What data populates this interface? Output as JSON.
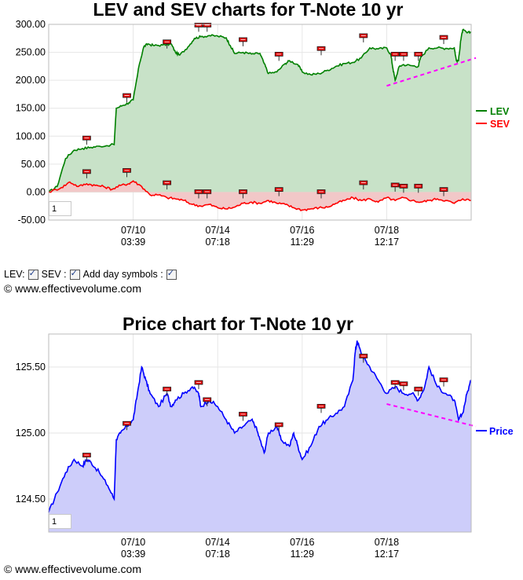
{
  "chart_data": [
    {
      "type": "line",
      "title": "LEV and SEV charts for T-Note 10 yr",
      "x_tick_labels": [
        {
          "date": "07/10",
          "time": "03:39"
        },
        {
          "date": "07/14",
          "time": "07:18"
        },
        {
          "date": "07/16",
          "time": "11:29"
        },
        {
          "date": "07/18",
          "time": "12:17"
        }
      ],
      "y_tick_labels": [
        "300.00",
        "250.00",
        "200.00",
        "150.00",
        "100.00",
        "50.00",
        "0.00",
        "-50.00"
      ],
      "ylim": [
        -50,
        300
      ],
      "series": [
        {
          "name": "LEV",
          "color": "#008000",
          "fill": "#c8e2c8",
          "points": [
            [
              0,
              0
            ],
            [
              0.02,
              10
            ],
            [
              0.04,
              60
            ],
            [
              0.06,
              75
            ],
            [
              0.08,
              78
            ],
            [
              0.1,
              80
            ],
            [
              0.12,
              82
            ],
            [
              0.155,
              85
            ],
            [
              0.16,
              150
            ],
            [
              0.175,
              155
            ],
            [
              0.19,
              160
            ],
            [
              0.2,
              165
            ],
            [
              0.215,
              230
            ],
            [
              0.225,
              260
            ],
            [
              0.235,
              265
            ],
            [
              0.25,
              262
            ],
            [
              0.27,
              263
            ],
            [
              0.29,
              265
            ],
            [
              0.3,
              250
            ],
            [
              0.31,
              245
            ],
            [
              0.33,
              260
            ],
            [
              0.345,
              275
            ],
            [
              0.36,
              278
            ],
            [
              0.38,
              280
            ],
            [
              0.4,
              279
            ],
            [
              0.42,
              276
            ],
            [
              0.43,
              262
            ],
            [
              0.44,
              248
            ],
            [
              0.46,
              250
            ],
            [
              0.48,
              247
            ],
            [
              0.5,
              248
            ],
            [
              0.51,
              230
            ],
            [
              0.52,
              212
            ],
            [
              0.54,
              215
            ],
            [
              0.56,
              230
            ],
            [
              0.57,
              235
            ],
            [
              0.59,
              228
            ],
            [
              0.6,
              215
            ],
            [
              0.62,
              210
            ],
            [
              0.64,
              212
            ],
            [
              0.66,
              218
            ],
            [
              0.68,
              225
            ],
            [
              0.7,
              230
            ],
            [
              0.72,
              232
            ],
            [
              0.74,
              240
            ],
            [
              0.76,
              258
            ],
            [
              0.78,
              256
            ],
            [
              0.8,
              258
            ],
            [
              0.81,
              245
            ],
            [
              0.815,
              220
            ],
            [
              0.82,
              200
            ],
            [
              0.83,
              225
            ],
            [
              0.84,
              228
            ],
            [
              0.86,
              226
            ],
            [
              0.875,
              225
            ],
            [
              0.88,
              240
            ],
            [
              0.9,
              258
            ],
            [
              0.92,
              258
            ],
            [
              0.94,
              257
            ],
            [
              0.96,
              258
            ],
            [
              0.965,
              235
            ],
            [
              0.97,
              235
            ],
            [
              0.975,
              270
            ],
            [
              0.98,
              290
            ],
            [
              0.99,
              285
            ],
            [
              1,
              286
            ]
          ]
        },
        {
          "name": "SEV",
          "color": "#ff0000",
          "fill": "#f2c8c8",
          "points": [
            [
              0,
              0
            ],
            [
              0.03,
              8
            ],
            [
              0.05,
              18
            ],
            [
              0.07,
              10
            ],
            [
              0.09,
              15
            ],
            [
              0.11,
              12
            ],
            [
              0.13,
              10
            ],
            [
              0.15,
              5
            ],
            [
              0.17,
              12
            ],
            [
              0.19,
              15
            ],
            [
              0.2,
              20
            ],
            [
              0.22,
              10
            ],
            [
              0.24,
              -5
            ],
            [
              0.26,
              -5
            ],
            [
              0.28,
              -10
            ],
            [
              0.3,
              -12
            ],
            [
              0.32,
              -15
            ],
            [
              0.34,
              -22
            ],
            [
              0.36,
              -25
            ],
            [
              0.38,
              -22
            ],
            [
              0.4,
              -28
            ],
            [
              0.42,
              -30
            ],
            [
              0.44,
              -27
            ],
            [
              0.46,
              -20
            ],
            [
              0.48,
              -18
            ],
            [
              0.5,
              -20
            ],
            [
              0.52,
              -15
            ],
            [
              0.54,
              -20
            ],
            [
              0.56,
              -22
            ],
            [
              0.58,
              -28
            ],
            [
              0.6,
              -32
            ],
            [
              0.62,
              -30
            ],
            [
              0.64,
              -28
            ],
            [
              0.66,
              -27
            ],
            [
              0.68,
              -20
            ],
            [
              0.7,
              -15
            ],
            [
              0.72,
              -10
            ],
            [
              0.74,
              -15
            ],
            [
              0.76,
              -12
            ],
            [
              0.78,
              -18
            ],
            [
              0.8,
              -10
            ],
            [
              0.82,
              -15
            ],
            [
              0.84,
              -10
            ],
            [
              0.86,
              -15
            ],
            [
              0.88,
              -18
            ],
            [
              0.9,
              -15
            ],
            [
              0.92,
              -12
            ],
            [
              0.94,
              -15
            ],
            [
              0.96,
              -20
            ],
            [
              0.98,
              -12
            ],
            [
              1,
              -15
            ]
          ]
        }
      ],
      "trend_line": {
        "color": "#ff00ff",
        "from": [
          0.8,
          190
        ],
        "to": [
          1,
          240
        ]
      },
      "day_symbols_lev": [
        [
          0.09,
          96
        ],
        [
          0.185,
          172
        ],
        [
          0.28,
          268
        ],
        [
          0.355,
          298
        ],
        [
          0.375,
          298
        ],
        [
          0.46,
          272
        ],
        [
          0.545,
          246
        ],
        [
          0.645,
          256
        ],
        [
          0.745,
          279
        ],
        [
          0.82,
          246
        ],
        [
          0.84,
          246
        ],
        [
          0.875,
          246
        ],
        [
          0.935,
          276
        ]
      ],
      "day_symbols_sev": [
        [
          0.09,
          36
        ],
        [
          0.185,
          38
        ],
        [
          0.28,
          16
        ],
        [
          0.355,
          0
        ],
        [
          0.375,
          0
        ],
        [
          0.46,
          0
        ],
        [
          0.545,
          4
        ],
        [
          0.645,
          0
        ],
        [
          0.745,
          16
        ],
        [
          0.82,
          12
        ],
        [
          0.84,
          10
        ],
        [
          0.875,
          10
        ],
        [
          0.935,
          4
        ]
      ],
      "legend": "right"
    },
    {
      "type": "area",
      "title": "Price chart for T-Note 10 yr",
      "x_tick_labels": [
        {
          "date": "07/10",
          "time": "03:39"
        },
        {
          "date": "07/14",
          "time": "07:18"
        },
        {
          "date": "07/16",
          "time": "11:29"
        },
        {
          "date": "07/18",
          "time": "12:17"
        }
      ],
      "y_tick_labels": [
        "125.50",
        "125.00",
        "124.50"
      ],
      "ylim": [
        124.25,
        125.75
      ],
      "series": [
        {
          "name": "Price",
          "color": "#0000ff",
          "fill": "#cdcdfa",
          "points": [
            [
              0,
              124.4
            ],
            [
              0.02,
              124.55
            ],
            [
              0.04,
              124.7
            ],
            [
              0.06,
              124.8
            ],
            [
              0.08,
              124.75
            ],
            [
              0.09,
              124.8
            ],
            [
              0.1,
              124.78
            ],
            [
              0.12,
              124.7
            ],
            [
              0.14,
              124.6
            ],
            [
              0.155,
              124.5
            ],
            [
              0.16,
              124.95
            ],
            [
              0.17,
              125.0
            ],
            [
              0.185,
              125.05
            ],
            [
              0.2,
              125.1
            ],
            [
              0.21,
              125.3
            ],
            [
              0.22,
              125.5
            ],
            [
              0.23,
              125.4
            ],
            [
              0.24,
              125.3
            ],
            [
              0.26,
              125.2
            ],
            [
              0.28,
              125.3
            ],
            [
              0.29,
              125.2
            ],
            [
              0.3,
              125.25
            ],
            [
              0.32,
              125.3
            ],
            [
              0.34,
              125.35
            ],
            [
              0.355,
              125.3
            ],
            [
              0.36,
              125.2
            ],
            [
              0.38,
              125.25
            ],
            [
              0.4,
              125.2
            ],
            [
              0.42,
              125.1
            ],
            [
              0.44,
              125.0
            ],
            [
              0.46,
              125.05
            ],
            [
              0.48,
              125.1
            ],
            [
              0.49,
              125.05
            ],
            [
              0.5,
              124.95
            ],
            [
              0.51,
              124.85
            ],
            [
              0.52,
              125.0
            ],
            [
              0.54,
              125.05
            ],
            [
              0.55,
              124.95
            ],
            [
              0.57,
              124.9
            ],
            [
              0.58,
              125.0
            ],
            [
              0.59,
              124.9
            ],
            [
              0.6,
              124.8
            ],
            [
              0.62,
              124.9
            ],
            [
              0.64,
              125.05
            ],
            [
              0.66,
              125.1
            ],
            [
              0.68,
              125.15
            ],
            [
              0.7,
              125.2
            ],
            [
              0.72,
              125.4
            ],
            [
              0.725,
              125.6
            ],
            [
              0.73,
              125.7
            ],
            [
              0.74,
              125.6
            ],
            [
              0.75,
              125.55
            ],
            [
              0.76,
              125.5
            ],
            [
              0.78,
              125.4
            ],
            [
              0.8,
              125.3
            ],
            [
              0.82,
              125.35
            ],
            [
              0.84,
              125.3
            ],
            [
              0.86,
              125.3
            ],
            [
              0.875,
              125.25
            ],
            [
              0.89,
              125.35
            ],
            [
              0.9,
              125.5
            ],
            [
              0.92,
              125.35
            ],
            [
              0.94,
              125.3
            ],
            [
              0.96,
              125.25
            ],
            [
              0.97,
              125.1
            ],
            [
              0.98,
              125.15
            ],
            [
              0.99,
              125.3
            ],
            [
              1,
              125.4
            ]
          ]
        }
      ],
      "trend_line": {
        "color": "#ff00ff",
        "from": [
          0.8,
          125.22
        ],
        "to": [
          1,
          125.05
        ]
      },
      "day_symbols": [
        [
          0.09,
          124.83
        ],
        [
          0.185,
          125.07
        ],
        [
          0.28,
          125.33
        ],
        [
          0.355,
          125.38
        ],
        [
          0.375,
          125.25
        ],
        [
          0.46,
          125.14
        ],
        [
          0.545,
          125.06
        ],
        [
          0.645,
          125.2
        ],
        [
          0.745,
          125.58
        ],
        [
          0.82,
          125.38
        ],
        [
          0.84,
          125.37
        ],
        [
          0.875,
          125.33
        ],
        [
          0.935,
          125.4
        ]
      ],
      "legend": "right"
    }
  ],
  "controls": {
    "lev_label": "LEV:",
    "sev_label": "SEV :",
    "day_symbols_label": "Add day symbols :"
  },
  "copyright": "© www.effectivevolume.com",
  "zoom_value": "1"
}
